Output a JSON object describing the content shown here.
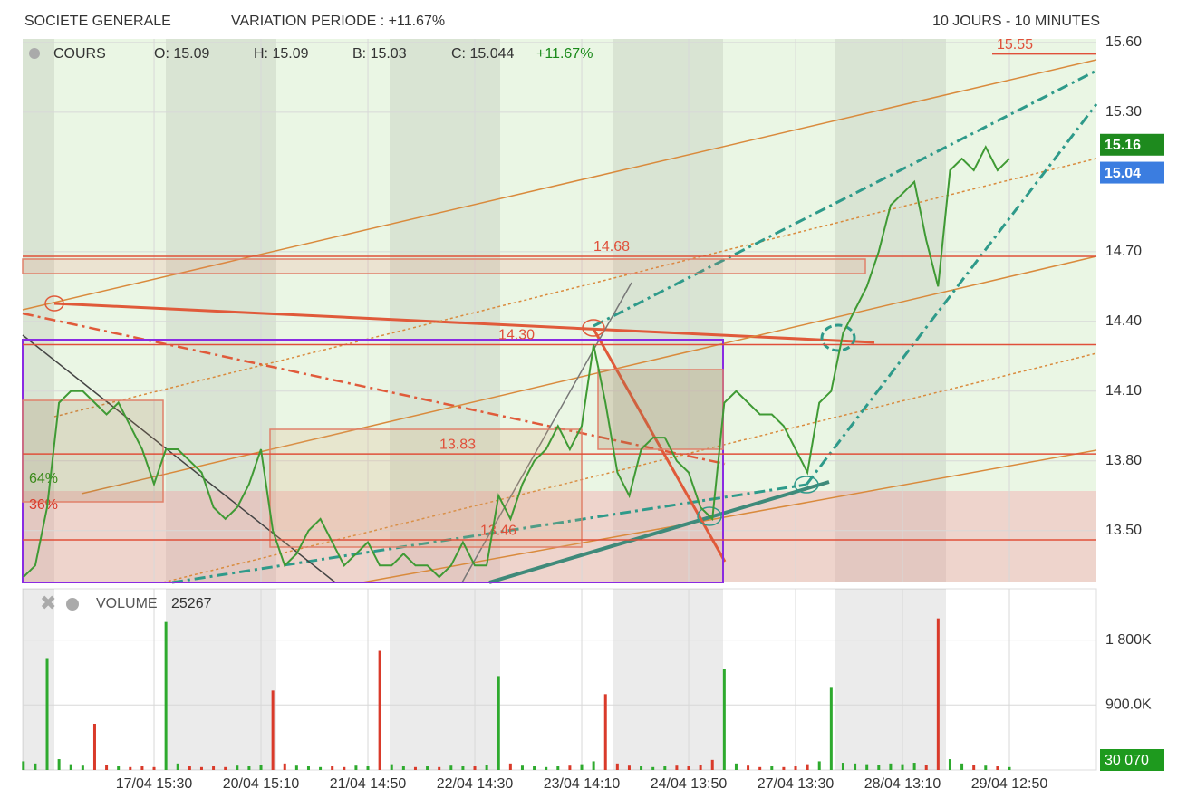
{
  "header": {
    "name": "SOCIETE GENERALE",
    "variation": "VARIATION PERIODE : +11.67%",
    "period": "10 JOURS - 10 MINUTES"
  },
  "chart_data": [
    {
      "type": "line",
      "title": "COURS",
      "legend": {
        "open": "O: 15.09",
        "high": "H: 15.09",
        "low": "B: 15.03",
        "close": "C: 15.044",
        "change": "+11.67%"
      },
      "categories": [
        null,
        null,
        null,
        null,
        null,
        null,
        null,
        null,
        null,
        null,
        null,
        "17/04 15:30",
        null,
        null,
        null,
        null,
        null,
        null,
        null,
        null,
        "20/04 15:10",
        null,
        null,
        null,
        null,
        null,
        null,
        null,
        null,
        "21/04 14:50",
        null,
        null,
        null,
        null,
        null,
        null,
        null,
        null,
        "22/04 14:30",
        null,
        null,
        null,
        null,
        null,
        null,
        null,
        null,
        "23/04 14:10",
        null,
        null,
        null,
        null,
        null,
        null,
        null,
        null,
        "24/04 13:50",
        null,
        null,
        null,
        null,
        null,
        null,
        null,
        null,
        "27/04 13:30",
        null,
        null,
        null,
        null,
        null,
        null,
        null,
        null,
        "28/04 13:10",
        null,
        null,
        null,
        null,
        null,
        null,
        null,
        null,
        "29/04 12:50"
      ],
      "series": [
        {
          "name": "COURS",
          "color": "#3f9a34",
          "values": [
            13.3,
            13.35,
            13.6,
            14.05,
            14.1,
            14.1,
            14.05,
            14.0,
            14.05,
            13.95,
            13.85,
            13.7,
            13.85,
            13.85,
            13.8,
            13.75,
            13.6,
            13.55,
            13.6,
            13.7,
            13.85,
            13.5,
            13.35,
            13.4,
            13.5,
            13.55,
            13.45,
            13.35,
            13.4,
            13.45,
            13.35,
            13.35,
            13.4,
            13.35,
            13.35,
            13.3,
            13.35,
            13.45,
            13.35,
            13.35,
            13.65,
            13.55,
            13.7,
            13.8,
            13.85,
            13.95,
            13.85,
            13.95,
            14.3,
            14.05,
            13.75,
            13.65,
            13.85,
            13.9,
            13.9,
            13.8,
            13.75,
            13.6,
            13.55,
            14.05,
            14.1,
            14.05,
            14.0,
            14.0,
            13.95,
            13.85,
            13.75,
            14.05,
            14.1,
            14.35,
            14.45,
            14.55,
            14.7,
            14.9,
            14.95,
            15.0,
            14.75,
            14.55,
            15.05,
            15.1,
            15.05,
            15.15,
            15.05,
            15.1
          ]
        }
      ],
      "ylim": [
        13.277,
        15.615
      ],
      "yticks": [
        {
          "value": 13.5,
          "label": "13.50"
        },
        {
          "value": 13.8,
          "label": "13.80"
        },
        {
          "value": 14.1,
          "label": "14.10"
        },
        {
          "value": 14.4,
          "label": "14.40"
        },
        {
          "value": 14.7,
          "label": "14.70"
        },
        {
          "value": 15.3,
          "label": "15.30"
        },
        {
          "value": 15.6,
          "label": "15.60"
        }
      ],
      "levels": [
        15.55,
        14.68,
        {
          "value": 14.3,
          "label": "14.30"
        },
        13.83,
        13.46
      ],
      "level_color": "#e0503a",
      "annotations": [
        "64%",
        "36%"
      ],
      "last_labels": [
        {
          "value": 15.16,
          "color": "#1e8a1e"
        },
        {
          "value": 15.04,
          "color": "#3b7de0"
        }
      ],
      "grid": true
    },
    {
      "type": "bar",
      "title": "VOLUME",
      "last_value": "25267",
      "current_label": "30 070",
      "values": [
        120000,
        90000,
        1550000,
        150000,
        80000,
        60000,
        640000,
        70000,
        50000,
        40000,
        50000,
        40000,
        2050000,
        90000,
        50000,
        40000,
        50000,
        40000,
        60000,
        50000,
        70000,
        1100000,
        90000,
        60000,
        50000,
        40000,
        50000,
        40000,
        60000,
        50000,
        1650000,
        80000,
        50000,
        40000,
        50000,
        40000,
        60000,
        50000,
        50000,
        70000,
        1300000,
        90000,
        60000,
        50000,
        40000,
        50000,
        60000,
        80000,
        120000,
        1050000,
        90000,
        60000,
        50000,
        40000,
        50000,
        60000,
        50000,
        70000,
        140000,
        1400000,
        90000,
        60000,
        40000,
        50000,
        40000,
        50000,
        80000,
        120000,
        1150000,
        100000,
        90000,
        80000,
        70000,
        90000,
        80000,
        100000,
        70000,
        2100000,
        150000,
        90000,
        70000,
        60000,
        50000,
        40000
      ],
      "up_color": "#2eaa2e",
      "down_color": "#d93a2a",
      "ylim": [
        0,
        2510000
      ],
      "yticks": [
        {
          "value": 900000,
          "label": "900.0K"
        },
        {
          "value": 1800000,
          "label": "1 800K"
        }
      ],
      "grid": true
    }
  ]
}
